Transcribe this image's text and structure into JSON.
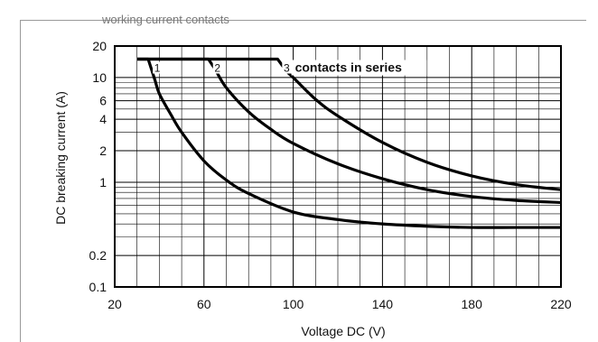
{
  "header_fragment": "working current contacts",
  "chart_data": {
    "type": "line",
    "xlabel": "Voltage DC (V)",
    "ylabel": "DC breaking current (A)",
    "xlim": [
      20,
      220
    ],
    "ylim": [
      0.1,
      20
    ],
    "yscale": "log",
    "x_ticks": [
      20,
      60,
      100,
      140,
      180,
      220
    ],
    "y_ticks": [
      {
        "value": 20,
        "label": "20"
      },
      {
        "value": 10,
        "label": "10"
      },
      {
        "value": 6,
        "label": "6"
      },
      {
        "value": 4,
        "label": "4"
      },
      {
        "value": 2,
        "label": "2"
      },
      {
        "value": 1,
        "label": "1"
      },
      {
        "value": 0.2,
        "label": "0.2"
      },
      {
        "value": 0.1,
        "label": "0.1"
      }
    ],
    "x_minor_step": 10,
    "y_minor_decades": true,
    "grid": true,
    "annotation": "contacts in series",
    "series": [
      {
        "name": "1",
        "x": [
          30,
          35,
          38,
          40,
          45,
          50,
          60,
          70,
          80,
          100,
          120,
          140,
          160,
          180,
          200,
          220
        ],
        "y": [
          15,
          15,
          9.5,
          7,
          4.5,
          3,
          1.6,
          1.05,
          0.78,
          0.52,
          0.44,
          0.4,
          0.38,
          0.37,
          0.37,
          0.37
        ]
      },
      {
        "name": "2",
        "x": [
          30,
          62,
          65,
          70,
          80,
          90,
          100,
          120,
          140,
          160,
          180,
          200,
          220
        ],
        "y": [
          15,
          15,
          12,
          8,
          4.7,
          3.2,
          2.35,
          1.5,
          1.08,
          0.85,
          0.73,
          0.67,
          0.64
        ]
      },
      {
        "name": "3",
        "x": [
          30,
          93,
          97,
          100,
          110,
          120,
          140,
          160,
          180,
          200,
          220
        ],
        "y": [
          15,
          15,
          11.5,
          10,
          6.2,
          4.3,
          2.4,
          1.55,
          1.15,
          0.95,
          0.85
        ]
      }
    ]
  }
}
